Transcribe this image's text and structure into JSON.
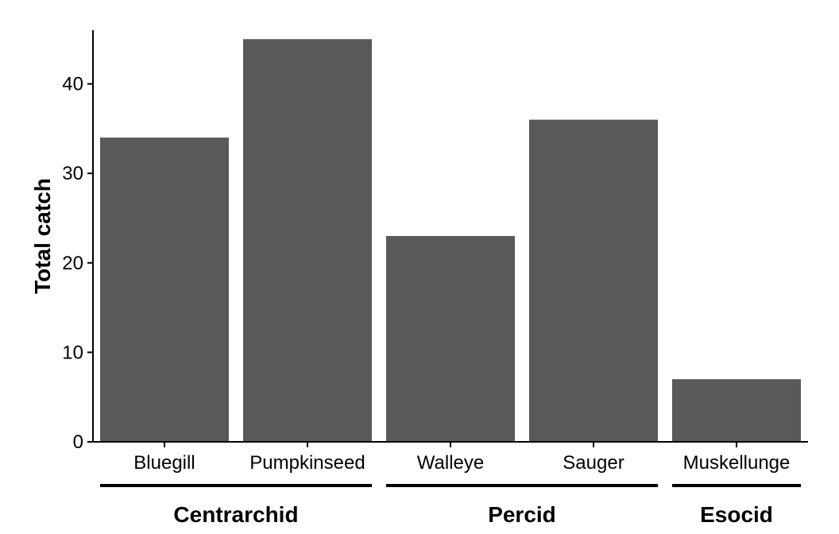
{
  "chart_data": {
    "type": "bar",
    "categories": [
      "Bluegill",
      "Pumpkinseed",
      "Walleye",
      "Sauger",
      "Muskellunge"
    ],
    "values": [
      34,
      45,
      23,
      36,
      7
    ],
    "xlabel": "",
    "ylabel": "Total catch",
    "ylim": [
      0,
      46
    ],
    "yticks": [
      "0",
      "10",
      "20",
      "30",
      "40"
    ],
    "groups": [
      {
        "label": "Centrarchid",
        "categories": [
          "Bluegill",
          "Pumpkinseed"
        ]
      },
      {
        "label": "Percid",
        "categories": [
          "Walleye",
          "Sauger"
        ]
      },
      {
        "label": "Esocid",
        "categories": [
          "Muskellunge"
        ]
      }
    ],
    "grid": false,
    "legend": "none",
    "colors": {
      "bar": "#595959",
      "axis": "#000000"
    }
  }
}
